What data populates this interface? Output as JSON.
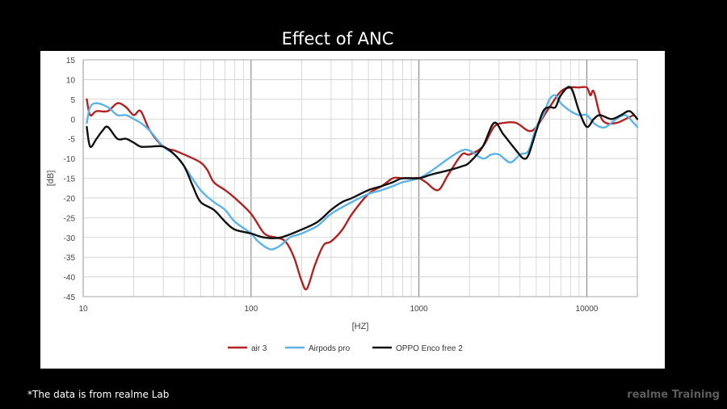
{
  "slide": {
    "title": "Effect of  ANC",
    "footnote": "*The data is from realme Lab",
    "brand": "realme Training"
  },
  "chart_data": {
    "type": "line",
    "title": "",
    "xlabel": "[HZ]",
    "ylabel": "[dB]",
    "xscale": "log",
    "xlim": [
      10,
      20000
    ],
    "ylim": [
      -45,
      15
    ],
    "x_ticks": [
      "10",
      "100",
      "1000",
      "10000"
    ],
    "y_ticks": [
      15,
      10,
      5,
      0,
      -5,
      -10,
      -15,
      -20,
      -25,
      -30,
      -35,
      -40,
      -45
    ],
    "grid": true,
    "legend_position": "bottom",
    "series": [
      {
        "name": "air 3",
        "color": "#b22222",
        "points": [
          [
            10.5,
            5
          ],
          [
            11,
            1
          ],
          [
            12,
            2
          ],
          [
            14,
            2
          ],
          [
            16,
            4
          ],
          [
            18,
            3
          ],
          [
            20,
            1
          ],
          [
            22,
            2
          ],
          [
            25,
            -3
          ],
          [
            30,
            -7
          ],
          [
            35,
            -8
          ],
          [
            40,
            -9
          ],
          [
            50,
            -11
          ],
          [
            55,
            -13
          ],
          [
            60,
            -16
          ],
          [
            70,
            -18
          ],
          [
            80,
            -20
          ],
          [
            100,
            -24
          ],
          [
            120,
            -29
          ],
          [
            140,
            -30
          ],
          [
            160,
            -31
          ],
          [
            180,
            -35
          ],
          [
            200,
            -41
          ],
          [
            215,
            -43
          ],
          [
            240,
            -37
          ],
          [
            270,
            -32
          ],
          [
            300,
            -31
          ],
          [
            350,
            -28
          ],
          [
            400,
            -24
          ],
          [
            500,
            -19
          ],
          [
            600,
            -17
          ],
          [
            700,
            -15
          ],
          [
            800,
            -15
          ],
          [
            900,
            -15
          ],
          [
            1000,
            -15
          ],
          [
            1100,
            -16
          ],
          [
            1300,
            -18
          ],
          [
            1500,
            -14
          ],
          [
            1800,
            -9
          ],
          [
            2000,
            -9
          ],
          [
            2400,
            -7
          ],
          [
            2800,
            -2
          ],
          [
            3200,
            -1
          ],
          [
            3800,
            -1
          ],
          [
            4500,
            -3
          ],
          [
            5000,
            -2
          ],
          [
            6000,
            3
          ],
          [
            7000,
            7
          ],
          [
            8000,
            8
          ],
          [
            9000,
            8
          ],
          [
            10000,
            8
          ],
          [
            10500,
            6
          ],
          [
            11000,
            7
          ],
          [
            12000,
            1
          ],
          [
            13000,
            -1
          ],
          [
            15000,
            -1
          ],
          [
            17000,
            0
          ],
          [
            19000,
            1
          ]
        ]
      },
      {
        "name": "Airpods pro",
        "color": "#5bb4e5",
        "points": [
          [
            10.5,
            -1
          ],
          [
            11,
            3
          ],
          [
            12,
            4
          ],
          [
            14,
            3
          ],
          [
            16,
            1
          ],
          [
            18,
            1
          ],
          [
            20,
            0
          ],
          [
            22,
            -1
          ],
          [
            25,
            -3
          ],
          [
            30,
            -7
          ],
          [
            35,
            -9
          ],
          [
            40,
            -12
          ],
          [
            50,
            -18
          ],
          [
            60,
            -21
          ],
          [
            70,
            -23
          ],
          [
            80,
            -26
          ],
          [
            100,
            -29
          ],
          [
            110,
            -31
          ],
          [
            130,
            -33
          ],
          [
            150,
            -32
          ],
          [
            170,
            -30
          ],
          [
            200,
            -29
          ],
          [
            250,
            -27
          ],
          [
            300,
            -24
          ],
          [
            400,
            -21
          ],
          [
            500,
            -19
          ],
          [
            600,
            -18
          ],
          [
            700,
            -17
          ],
          [
            800,
            -16
          ],
          [
            1000,
            -15
          ],
          [
            1200,
            -13
          ],
          [
            1500,
            -10
          ],
          [
            1800,
            -8
          ],
          [
            2000,
            -8
          ],
          [
            2400,
            -10
          ],
          [
            2700,
            -9
          ],
          [
            3000,
            -9
          ],
          [
            3500,
            -11
          ],
          [
            4000,
            -9
          ],
          [
            4500,
            -8
          ],
          [
            5000,
            -2
          ],
          [
            5500,
            1
          ],
          [
            6000,
            5
          ],
          [
            6500,
            6
          ],
          [
            7000,
            4
          ],
          [
            8000,
            2
          ],
          [
            9000,
            1
          ],
          [
            10000,
            1
          ],
          [
            11000,
            -1
          ],
          [
            12000,
            -2
          ],
          [
            13000,
            -2
          ],
          [
            15000,
            0
          ],
          [
            17000,
            1
          ],
          [
            19000,
            -1
          ],
          [
            20000,
            -2
          ]
        ]
      },
      {
        "name": "OPPO Enco free 2",
        "color": "#111111",
        "points": [
          [
            10.5,
            -2
          ],
          [
            11,
            -7
          ],
          [
            12,
            -5
          ],
          [
            13,
            -3
          ],
          [
            14,
            -2
          ],
          [
            16,
            -5
          ],
          [
            18,
            -5
          ],
          [
            20,
            -6
          ],
          [
            22,
            -7
          ],
          [
            25,
            -7
          ],
          [
            30,
            -7
          ],
          [
            35,
            -9
          ],
          [
            40,
            -12
          ],
          [
            45,
            -17
          ],
          [
            50,
            -21
          ],
          [
            60,
            -23
          ],
          [
            70,
            -26
          ],
          [
            80,
            -28
          ],
          [
            100,
            -29
          ],
          [
            120,
            -30
          ],
          [
            150,
            -30
          ],
          [
            200,
            -28
          ],
          [
            250,
            -26
          ],
          [
            300,
            -23
          ],
          [
            350,
            -21
          ],
          [
            400,
            -20
          ],
          [
            500,
            -18
          ],
          [
            600,
            -17
          ],
          [
            700,
            -16
          ],
          [
            800,
            -15
          ],
          [
            1000,
            -15
          ],
          [
            1200,
            -14
          ],
          [
            1500,
            -13
          ],
          [
            1800,
            -12
          ],
          [
            2000,
            -11
          ],
          [
            2400,
            -7
          ],
          [
            2800,
            -1
          ],
          [
            3200,
            -4
          ],
          [
            3800,
            -8
          ],
          [
            4200,
            -10
          ],
          [
            4500,
            -9
          ],
          [
            5000,
            -3
          ],
          [
            5500,
            2
          ],
          [
            6000,
            3
          ],
          [
            6500,
            3
          ],
          [
            7000,
            6
          ],
          [
            8000,
            8
          ],
          [
            9000,
            2
          ],
          [
            10000,
            -2
          ],
          [
            11000,
            0
          ],
          [
            12000,
            1
          ],
          [
            14000,
            0
          ],
          [
            16000,
            1
          ],
          [
            18000,
            2
          ],
          [
            20000,
            0
          ]
        ]
      }
    ]
  }
}
